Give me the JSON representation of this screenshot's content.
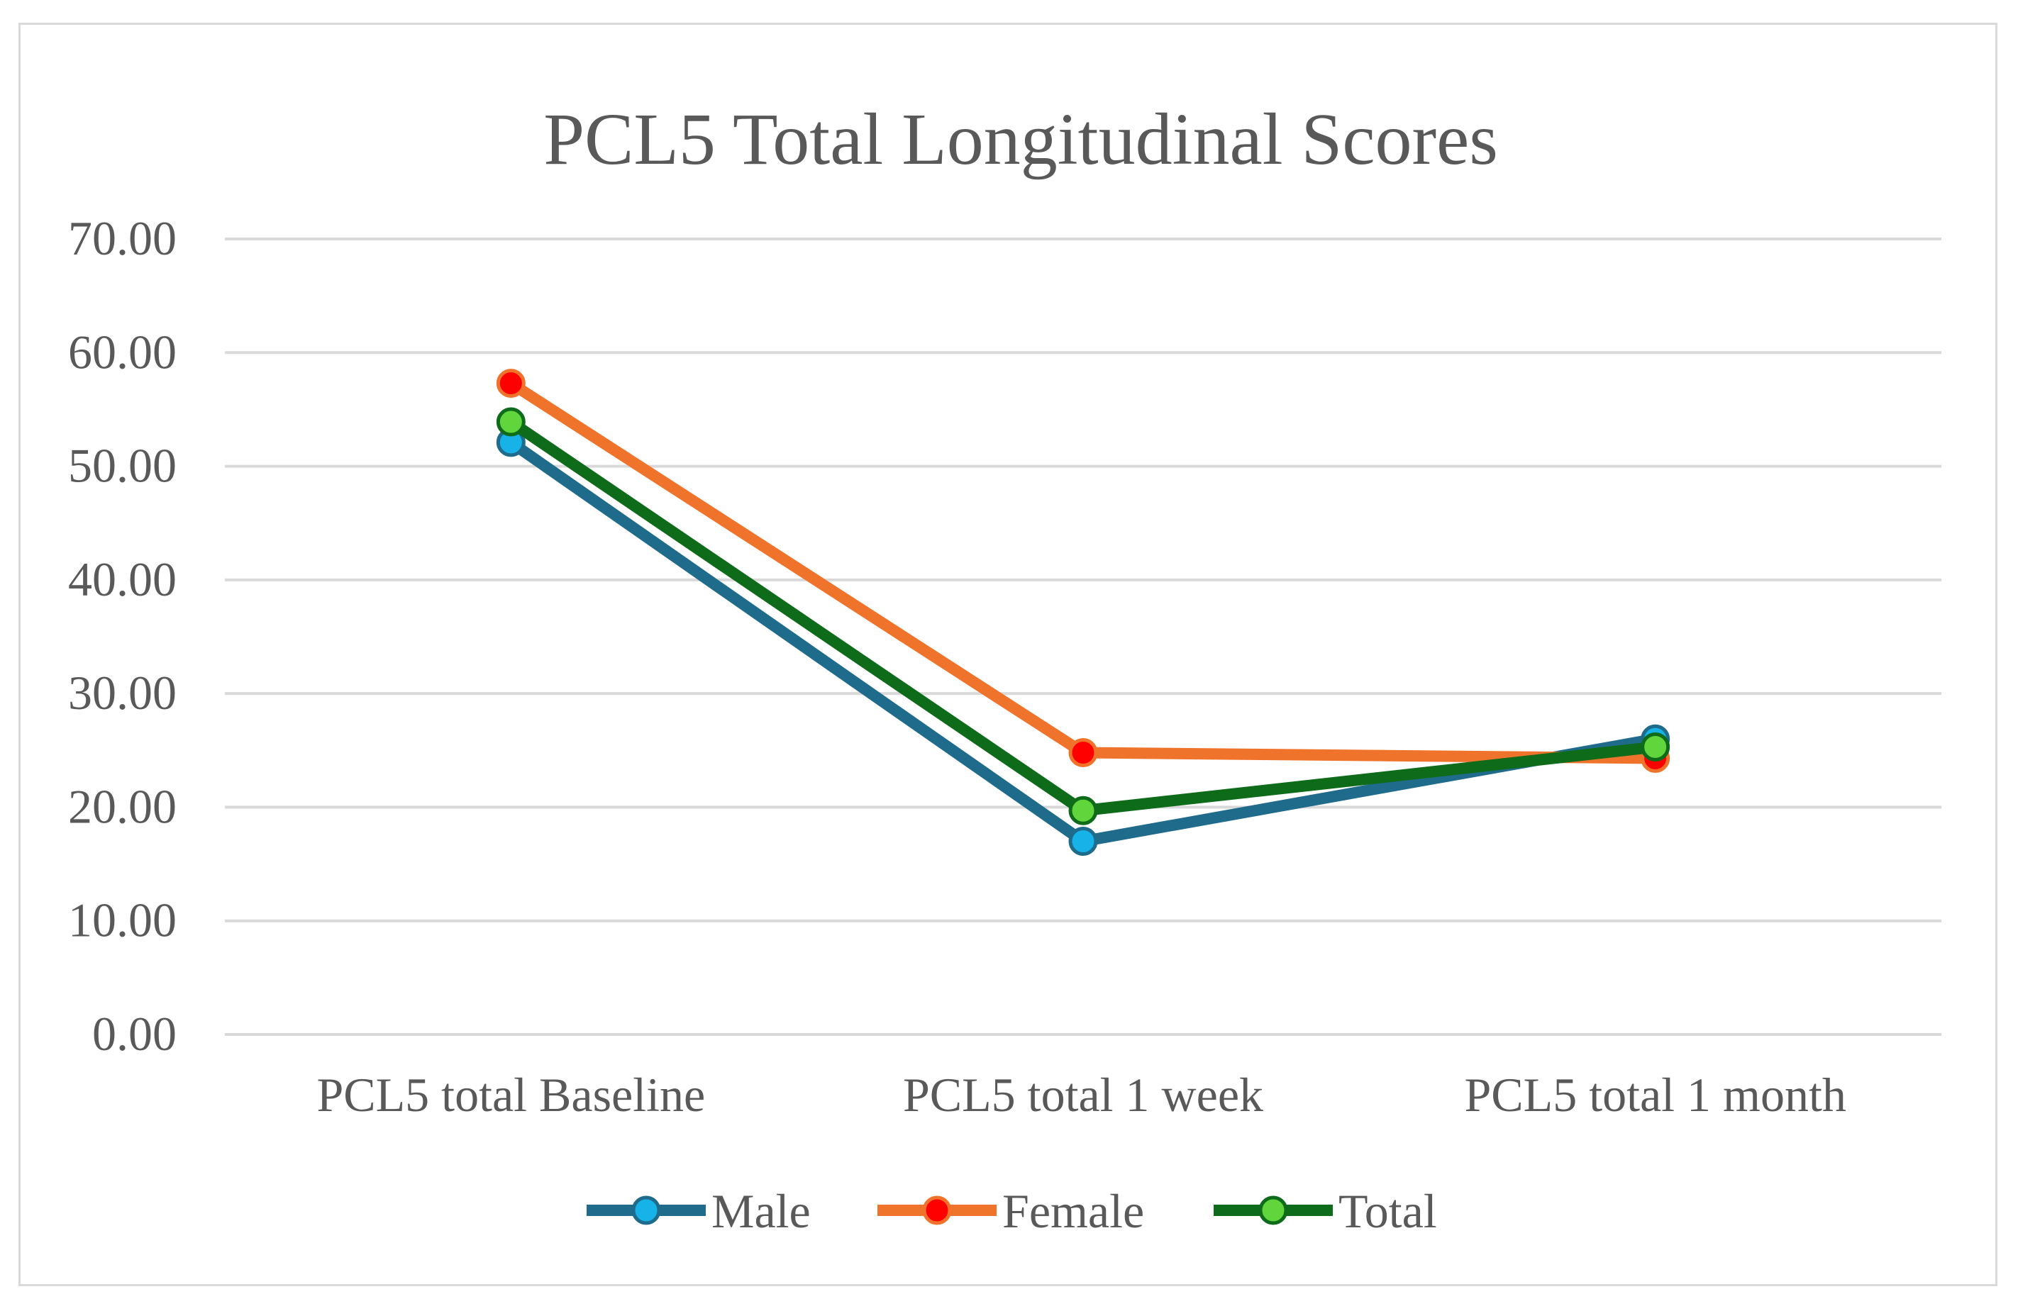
{
  "chart_data": {
    "type": "line",
    "title": "PCL5 Total Longitudinal Scores",
    "xlabel": "",
    "ylabel": "",
    "categories": [
      "PCL5 total Baseline",
      "PCL5 total 1 week",
      "PCL5 total 1 month"
    ],
    "ylim": [
      0,
      70
    ],
    "yticks": [
      0,
      10,
      20,
      30,
      40,
      50,
      60,
      70
    ],
    "ytick_labels": [
      "0.00",
      "10.00",
      "20.00",
      "30.00",
      "40.00",
      "50.00",
      "60.00",
      "70.00"
    ],
    "grid": true,
    "legend_position": "bottom",
    "series": [
      {
        "name": "Male",
        "values": [
          52.1,
          17.0,
          26.0
        ],
        "line_color": "#1f6b8c",
        "marker_color": "#16b2e8"
      },
      {
        "name": "Female",
        "values": [
          57.3,
          24.8,
          24.3
        ],
        "line_color": "#f0732c",
        "marker_color": "#ff0000"
      },
      {
        "name": "Total",
        "values": [
          53.9,
          19.7,
          25.3
        ],
        "line_color": "#0e6b1a",
        "marker_color": "#61d53c"
      }
    ]
  }
}
